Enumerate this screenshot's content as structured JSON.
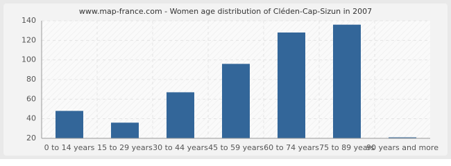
{
  "chart_data": {
    "type": "bar",
    "title": "www.map-france.com - Women age distribution of Cléden-Cap-Sizun in 2007",
    "categories": [
      "0 to 14 years",
      "15 to 29 years",
      "30 to 44 years",
      "45 to 59 years",
      "60 to 74 years",
      "75 to 89 years",
      "90 years and more"
    ],
    "values": [
      48,
      36,
      67,
      96,
      128,
      136,
      21
    ],
    "color": "#336699",
    "ylim": [
      20,
      140
    ],
    "yticks": [
      20,
      40,
      60,
      80,
      100,
      120,
      140
    ],
    "grid": true
  }
}
